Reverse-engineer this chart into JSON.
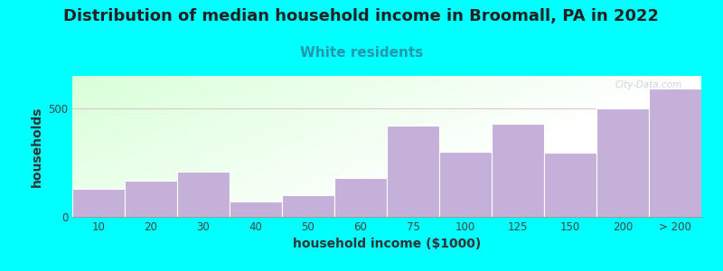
{
  "title": "Distribution of median household income in Broomall, PA in 2022",
  "subtitle": "White residents",
  "xlabel": "household income ($1000)",
  "ylabel": "households",
  "background_outer": "#00FFFF",
  "bar_color": "#C4B0D8",
  "bar_edge_color": "#FFFFFF",
  "categories": [
    "10",
    "20",
    "30",
    "40",
    "50",
    "60",
    "75",
    "100",
    "125",
    "150",
    "200",
    "> 200"
  ],
  "values": [
    130,
    165,
    210,
    70,
    100,
    180,
    420,
    300,
    430,
    295,
    500,
    590
  ],
  "ylim": [
    0,
    650
  ],
  "ytick_val": 500,
  "watermark": "City-Data.com",
  "title_fontsize": 13,
  "subtitle_fontsize": 11,
  "subtitle_color": "#2299AA",
  "axis_label_fontsize": 10,
  "tick_fontsize": 8.5
}
